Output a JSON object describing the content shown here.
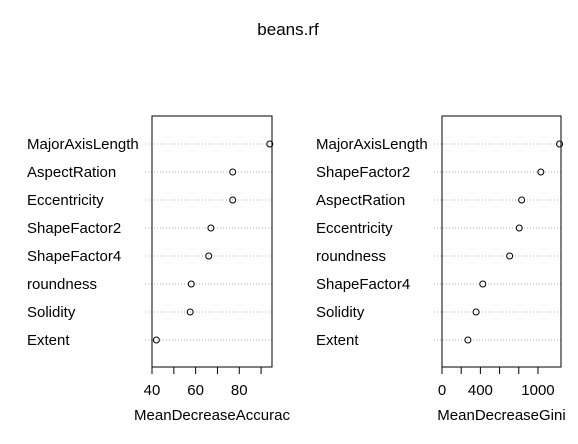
{
  "title": "beans.rf",
  "chart_data": [
    {
      "type": "dotchart",
      "xlabel": "MeanDecreaseAccurac",
      "ylabel": "",
      "xlim": [
        40,
        95
      ],
      "xticks": [
        40,
        60,
        80
      ],
      "xticks_minor": [
        50,
        70,
        90
      ],
      "grid": "dotted horizontal lines",
      "categories": [
        "MajorAxisLength",
        "AspectRation",
        "Eccentricity",
        "ShapeFactor2",
        "ShapeFactor4",
        "roundness",
        "Solidity",
        "Extent"
      ],
      "values": [
        94,
        77,
        77,
        67,
        66,
        58,
        57.5,
        42
      ]
    },
    {
      "type": "dotchart",
      "xlabel": "MeanDecreaseGini",
      "ylabel": "",
      "xlim": [
        0,
        1240
      ],
      "xticks": [
        0,
        400,
        1000
      ],
      "xticks_minor": [
        200,
        600,
        800
      ],
      "grid": "dotted horizontal lines",
      "categories": [
        "MajorAxisLength",
        "ShapeFactor2",
        "AspectRation",
        "Eccentricity",
        "roundness",
        "ShapeFactor4",
        "Solidity",
        "Extent"
      ],
      "values": [
        1225,
        1030,
        830,
        805,
        705,
        425,
        355,
        270
      ]
    }
  ]
}
